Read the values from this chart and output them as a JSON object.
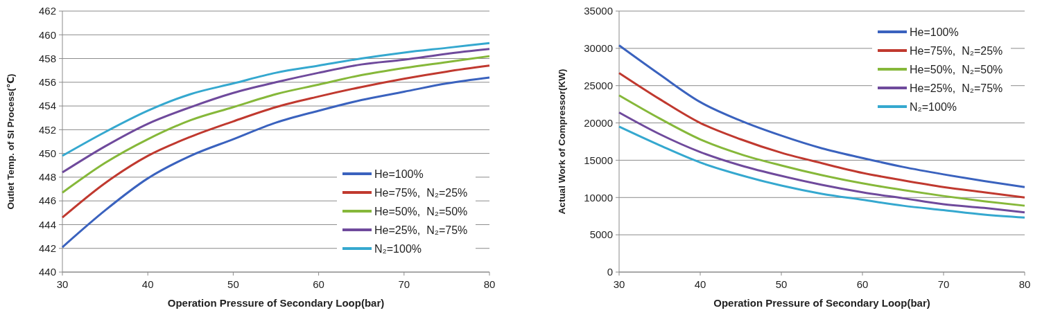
{
  "chart_data": [
    {
      "type": "line",
      "xlabel": "Operation Pressure of Secondary Loop(bar)",
      "ylabel": "Outlet Temp. of SI Process(℃)",
      "x": [
        30,
        35,
        40,
        45,
        50,
        55,
        60,
        65,
        70,
        75,
        80
      ],
      "xlim": [
        30,
        80
      ],
      "xticks": [
        30,
        40,
        50,
        60,
        70,
        80
      ],
      "ylim": [
        440,
        462
      ],
      "yticks": [
        440,
        442,
        444,
        446,
        448,
        450,
        452,
        454,
        456,
        458,
        460,
        462
      ],
      "grid": "y",
      "legend": "bottom right",
      "marker": "none",
      "line_style": "solid",
      "series": [
        {
          "name": "He=100%",
          "color": "#3a62be",
          "values": [
            442.1,
            445.2,
            447.9,
            449.8,
            451.2,
            452.6,
            453.6,
            454.5,
            455.2,
            455.9,
            456.4
          ]
        },
        {
          "name": "He=75%,  N₂=25%",
          "color": "#c0392f",
          "values": [
            444.6,
            447.5,
            449.8,
            451.4,
            452.7,
            453.9,
            454.8,
            455.6,
            456.3,
            456.9,
            457.4
          ]
        },
        {
          "name": "He=50%,  N₂=50%",
          "color": "#86b83a",
          "values": [
            446.7,
            449.2,
            451.2,
            452.8,
            453.9,
            455.0,
            455.8,
            456.6,
            457.2,
            457.7,
            458.2
          ]
        },
        {
          "name": "He=25%,  N₂=75%",
          "color": "#6f4a9c",
          "values": [
            448.4,
            450.6,
            452.5,
            453.9,
            455.1,
            456.0,
            456.8,
            457.5,
            457.9,
            458.4,
            458.8
          ]
        },
        {
          "name": "N₂=100%",
          "color": "#35a8cf",
          "values": [
            449.8,
            451.8,
            453.6,
            455.0,
            455.9,
            456.8,
            457.4,
            458.0,
            458.5,
            458.9,
            459.3
          ]
        }
      ]
    },
    {
      "type": "line",
      "xlabel": "Operation Pressure of Secondary Loop(bar)",
      "ylabel": "Actual Work of Compressor(KW)",
      "x": [
        30,
        35,
        40,
        45,
        50,
        55,
        60,
        65,
        70,
        75,
        80
      ],
      "xlim": [
        30,
        80
      ],
      "xticks": [
        30,
        40,
        50,
        60,
        70,
        80
      ],
      "ylim": [
        0,
        35000
      ],
      "yticks": [
        0,
        5000,
        10000,
        15000,
        20000,
        25000,
        30000,
        35000
      ],
      "grid": "y",
      "legend": "top right",
      "marker": "none",
      "line_style": "solid",
      "series": [
        {
          "name": "He=100%",
          "color": "#3a62be",
          "values": [
            30400,
            26500,
            22800,
            20300,
            18300,
            16600,
            15300,
            14100,
            13100,
            12200,
            11400
          ]
        },
        {
          "name": "He=75%,  N₂=25%",
          "color": "#c0392f",
          "values": [
            26700,
            23200,
            20000,
            17800,
            16000,
            14600,
            13300,
            12300,
            11400,
            10700,
            10000
          ]
        },
        {
          "name": "He=50%,  N₂=50%",
          "color": "#86b83a",
          "values": [
            23700,
            20600,
            17800,
            15800,
            14300,
            13000,
            11900,
            11000,
            10200,
            9500,
            8900
          ]
        },
        {
          "name": "He=25%,  N₂=75%",
          "color": "#6f4a9c",
          "values": [
            21400,
            18500,
            16100,
            14300,
            12900,
            11700,
            10700,
            9900,
            9100,
            8600,
            8000
          ]
        },
        {
          "name": "N₂=100%",
          "color": "#35a8cf",
          "values": [
            19500,
            17000,
            14700,
            13000,
            11600,
            10500,
            9700,
            8900,
            8300,
            7700,
            7300
          ]
        }
      ]
    }
  ]
}
